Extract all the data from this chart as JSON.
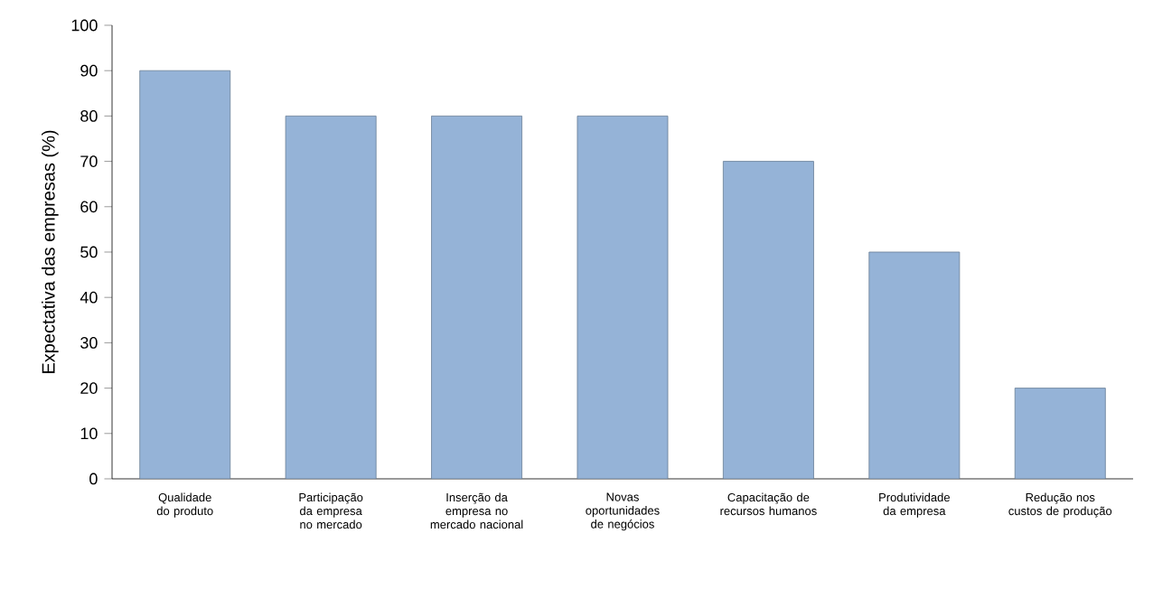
{
  "chart_data": {
    "type": "bar",
    "ylabel": "Expectativa das empresas (%)",
    "categories": [
      "Qualidade do produto",
      "Participação da empresa no mercado",
      "Inserção da empresa no mercado nacional",
      "Novas oportunidades de negócios",
      "Capacitação de recursos humanos",
      "Produtividade da empresa",
      "Redução nos custos de produção"
    ],
    "values": [
      90,
      80,
      80,
      80,
      70,
      50,
      20
    ],
    "color": "#95b3d7",
    "ylim": [
      0,
      100
    ],
    "yticks": [
      0,
      10,
      20,
      30,
      40,
      50,
      60,
      70,
      80,
      90,
      100
    ]
  }
}
